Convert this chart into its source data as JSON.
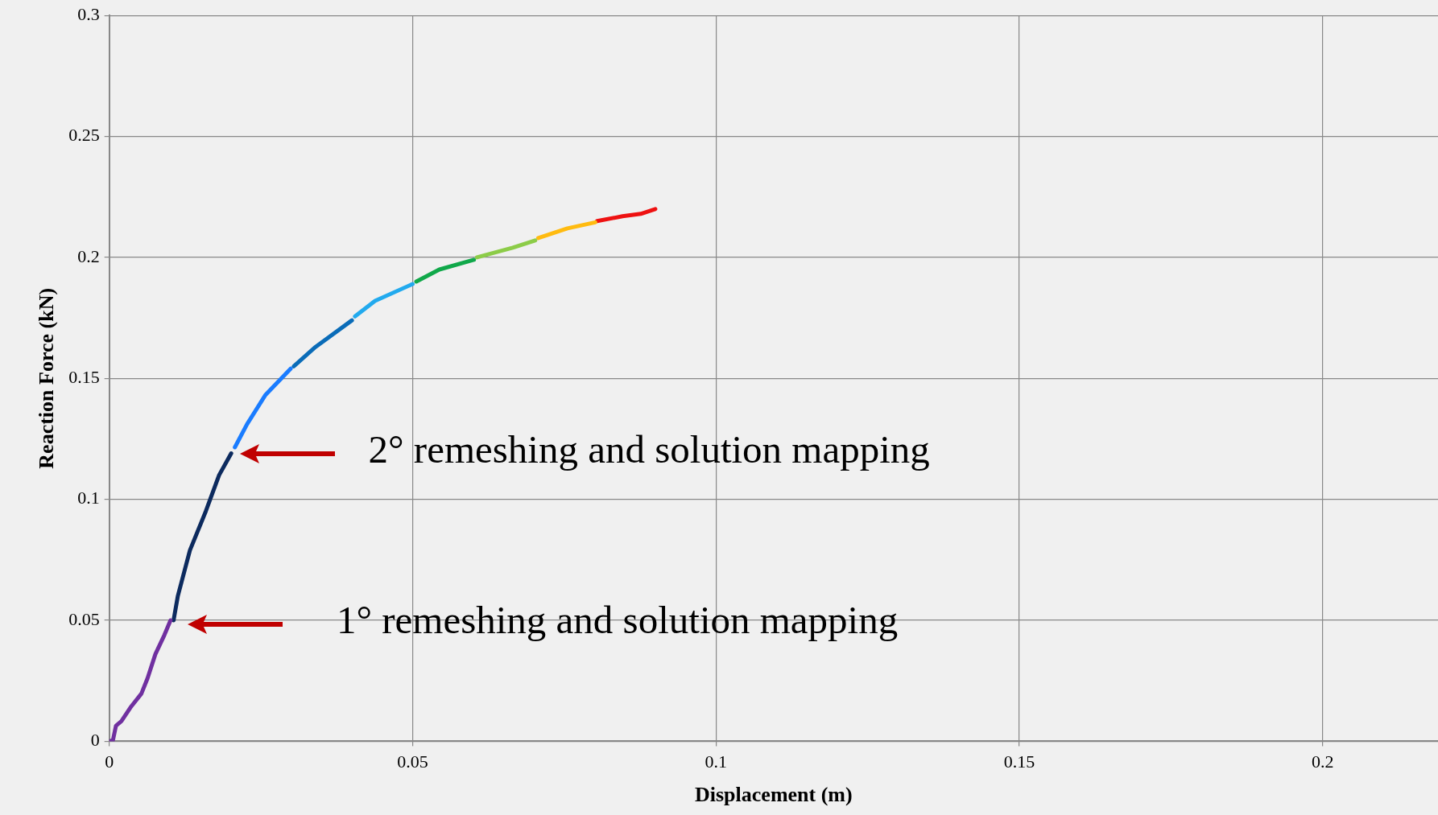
{
  "chart_data": {
    "type": "line",
    "xlabel": "Displacement (m)",
    "ylabel": "Reaction Force (kN)",
    "xlim": [
      0,
      0.219
    ],
    "ylim": [
      0,
      0.3
    ],
    "xticks": [
      0,
      0.05,
      0.1,
      0.15,
      0.2
    ],
    "yticks": [
      0,
      0.05,
      0.1,
      0.15,
      0.2,
      0.25,
      0.3
    ],
    "grid": true,
    "legend": false,
    "marker": "none",
    "line_style": "solid",
    "series": [
      {
        "color": "#7030a0",
        "x": [
          0,
          0.0006,
          0.0011,
          0.002,
          0.0035,
          0.0053,
          0.0063,
          0.0076,
          0.0091,
          0.0101
        ],
        "values": [
          0,
          0.0004,
          0.0064,
          0.0083,
          0.014,
          0.0197,
          0.026,
          0.036,
          0.044,
          0.05
        ]
      },
      {
        "color": "#0c2a5e",
        "x": [
          0.0106,
          0.0113,
          0.0133,
          0.0159,
          0.0181,
          0.0201
        ],
        "values": [
          0.05,
          0.06,
          0.079,
          0.095,
          0.11,
          0.119
        ]
      },
      {
        "color": "#1a7cff",
        "x": [
          0.0207,
          0.0227,
          0.0257,
          0.0299
        ],
        "values": [
          0.1215,
          0.131,
          0.143,
          0.154
        ]
      },
      {
        "color": "#0a6cb8",
        "x": [
          0.0304,
          0.034,
          0.04
        ],
        "values": [
          0.155,
          0.163,
          0.174
        ]
      },
      {
        "color": "#22aaee",
        "x": [
          0.0405,
          0.0438,
          0.05
        ],
        "values": [
          0.1756,
          0.182,
          0.189
        ]
      },
      {
        "color": "#10a84a",
        "x": [
          0.0506,
          0.0544,
          0.0601
        ],
        "values": [
          0.19,
          0.195,
          0.199
        ]
      },
      {
        "color": "#8ccc48",
        "x": [
          0.0606,
          0.0665,
          0.0702
        ],
        "values": [
          0.2,
          0.204,
          0.207
        ]
      },
      {
        "color": "#ffbb10",
        "x": [
          0.0707,
          0.0755,
          0.0801
        ],
        "values": [
          0.208,
          0.212,
          0.2145
        ]
      },
      {
        "color": "#ee1111",
        "x": [
          0.0804,
          0.0846,
          0.0876,
          0.09
        ],
        "values": [
          0.215,
          0.217,
          0.218,
          0.22
        ]
      }
    ],
    "annotations": [
      "1° remeshing and solution mapping",
      "2° remeshing and solution mapping"
    ]
  }
}
